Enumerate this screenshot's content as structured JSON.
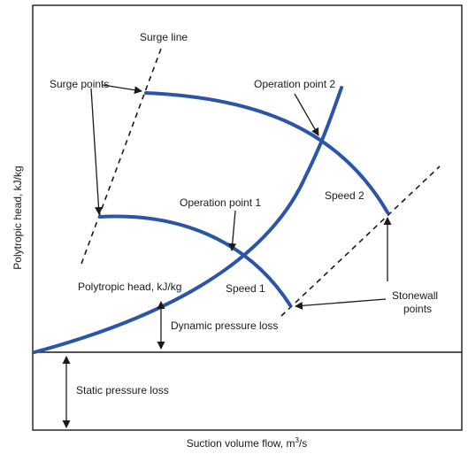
{
  "x_axis_title": "Suction volume flow, m",
  "x_axis_title_sup": "3",
  "x_axis_title_tail": "/s",
  "y_axis_title": "Polytropic head, kJ/kg",
  "labels": {
    "surge_line": "Surge line",
    "surge_points": "Surge points",
    "operation_point_2": "Operation point 2",
    "operation_point_1": "Operation point 1",
    "speed_2": "Speed 2",
    "speed_1": "Speed 1",
    "polytropic_head": "Polytropic head, kJ/kg",
    "dynamic_pressure_loss": "Dynamic pressure loss",
    "static_pressure_loss": "Static pressure loss",
    "stonewall_line1": "Stonewall",
    "stonewall_line2": "points"
  },
  "colors": {
    "curve": "#2a55a8",
    "ink": "#1a1a1a"
  }
}
